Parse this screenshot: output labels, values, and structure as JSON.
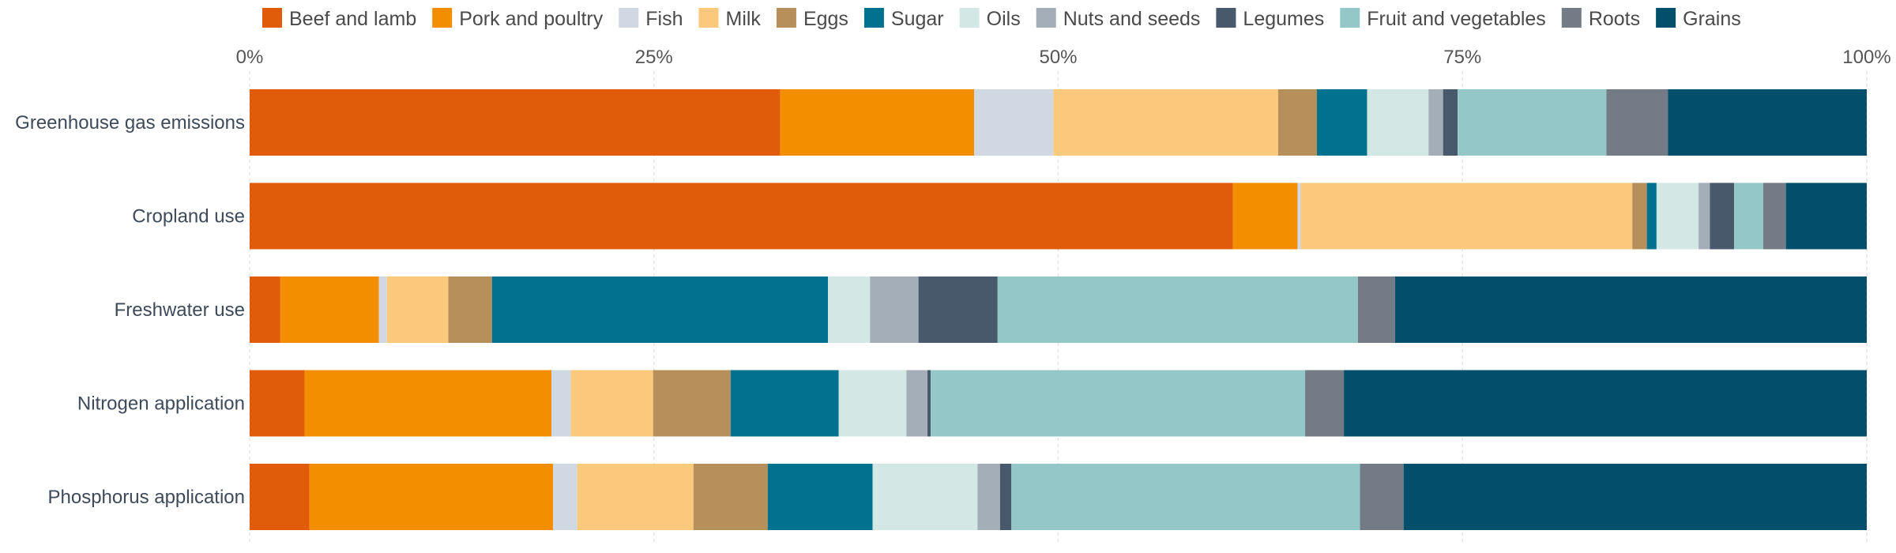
{
  "chart_data": {
    "type": "bar",
    "orientation": "horizontal",
    "stacked": true,
    "title": "",
    "xlabel": "",
    "ylabel": "",
    "xlim": [
      0,
      100
    ],
    "x_ticks": [
      "0%",
      "25%",
      "50%",
      "75%",
      "100%"
    ],
    "x_tick_values": [
      0,
      25,
      50,
      75,
      100
    ],
    "grid": true,
    "legend_position": "top",
    "categories": [
      "Greenhouse gas emissions",
      "Cropland use",
      "Freshwater use",
      "Nitrogen application",
      "Phosphorus application"
    ],
    "series": [
      {
        "name": "Beef and lamb",
        "color": "#e05c0a",
        "values": [
          32.8,
          60.8,
          1.9,
          3.4,
          3.7
        ]
      },
      {
        "name": "Pork and poultry",
        "color": "#f28e00",
        "values": [
          12.0,
          4.0,
          6.1,
          15.3,
          15.1
        ]
      },
      {
        "name": "Fish",
        "color": "#cfd8e3",
        "values": [
          4.9,
          0.2,
          0.5,
          1.2,
          1.5
        ]
      },
      {
        "name": "Milk",
        "color": "#fbc97c",
        "values": [
          13.9,
          20.5,
          3.8,
          5.1,
          7.2
        ]
      },
      {
        "name": "Eggs",
        "color": "#b68f5a",
        "values": [
          2.4,
          0.9,
          2.7,
          4.8,
          4.6
        ]
      },
      {
        "name": "Sugar",
        "color": "#00718f",
        "values": [
          3.1,
          0.6,
          20.8,
          6.7,
          6.5
        ]
      },
      {
        "name": "Oils",
        "color": "#d3e7e5",
        "values": [
          3.8,
          2.6,
          2.6,
          4.2,
          6.5
        ]
      },
      {
        "name": "Nuts and seeds",
        "color": "#a4aeb9",
        "values": [
          0.9,
          0.7,
          3.0,
          1.3,
          1.4
        ]
      },
      {
        "name": "Legumes",
        "color": "#47596b",
        "values": [
          0.9,
          1.5,
          4.9,
          0.2,
          0.7
        ]
      },
      {
        "name": "Fruit and vegetables",
        "color": "#94c8c8",
        "values": [
          9.2,
          1.8,
          22.3,
          23.2,
          21.6
        ]
      },
      {
        "name": "Roots",
        "color": "#737b86",
        "values": [
          3.8,
          1.4,
          2.3,
          2.4,
          2.7
        ]
      },
      {
        "name": "Grains",
        "color": "#024f6b",
        "values": [
          12.3,
          5.0,
          29.2,
          32.4,
          28.7
        ]
      }
    ]
  }
}
